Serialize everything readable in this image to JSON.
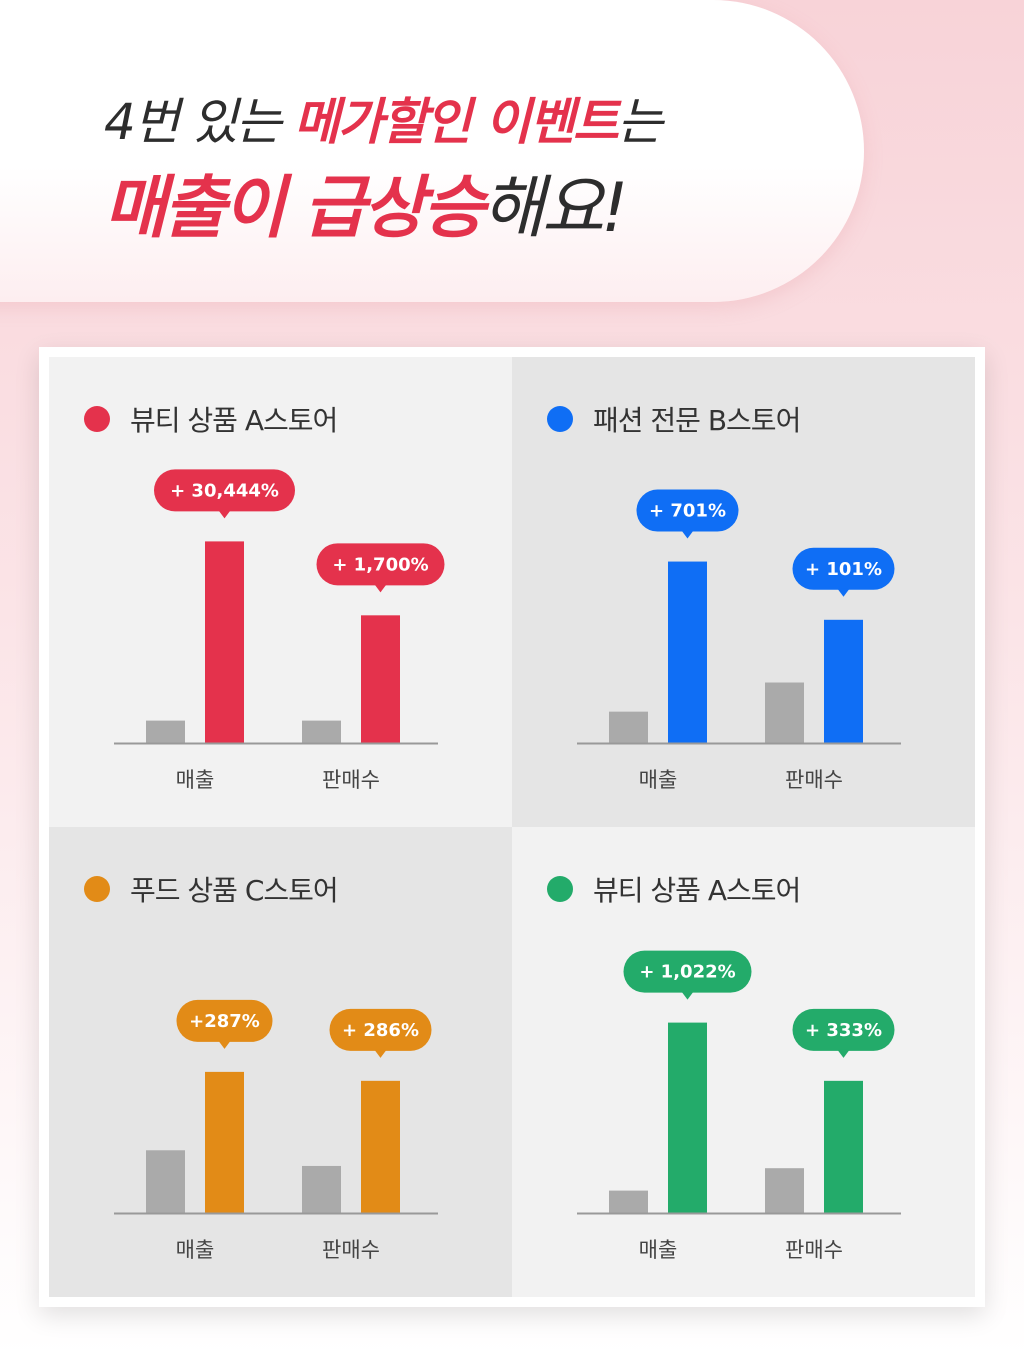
{
  "header": {
    "line1_prefix": "4번 있는 ",
    "line1_highlight": "메가할인 이벤트",
    "line1_suffix": "는",
    "line2_highlight": "매출이 급상승",
    "line2_suffix": "해요!"
  },
  "colors": {
    "brand_red": "#e4324c",
    "baseline_gray": "#aaaaaa"
  },
  "chart_data": [
    {
      "type": "bar",
      "title": "뷰티 상품 A스토어",
      "color": "#e4324c",
      "categories": [
        "매출",
        "판매수"
      ],
      "series": [
        {
          "values": [
            1,
            1
          ]
        },
        {
          "values": [
            9,
            5.7
          ]
        }
      ],
      "labels": [
        "+ 30,444%",
        "+ 1,700%"
      ],
      "ylim": [
        0,
        10
      ]
    },
    {
      "type": "bar",
      "title": "패션 전문 B스토어",
      "color": "#0f6ef5",
      "categories": [
        "매출",
        "판매수"
      ],
      "series": [
        {
          "values": [
            1.4,
            2.7
          ]
        },
        {
          "values": [
            8.1,
            5.5
          ]
        }
      ],
      "labels": [
        "+ 701%",
        "+ 101%"
      ],
      "ylim": [
        0,
        10
      ]
    },
    {
      "type": "bar",
      "title": "푸드 상품 C스토어",
      "color": "#e28b17",
      "categories": [
        "매출",
        "판매수"
      ],
      "series": [
        {
          "values": [
            2.8,
            2.1
          ]
        },
        {
          "values": [
            6.3,
            5.9
          ]
        }
      ],
      "labels": [
        "+287%",
        "+ 286%"
      ],
      "ylim": [
        0,
        10
      ]
    },
    {
      "type": "bar",
      "title": "뷰티 상품 A스토어",
      "color": "#23ab6a",
      "categories": [
        "매출",
        "판매수"
      ],
      "series": [
        {
          "values": [
            1,
            2
          ]
        },
        {
          "values": [
            8.5,
            5.9
          ]
        }
      ],
      "labels": [
        "+ 1,022%",
        "+ 333%"
      ],
      "ylim": [
        0,
        10
      ]
    }
  ]
}
